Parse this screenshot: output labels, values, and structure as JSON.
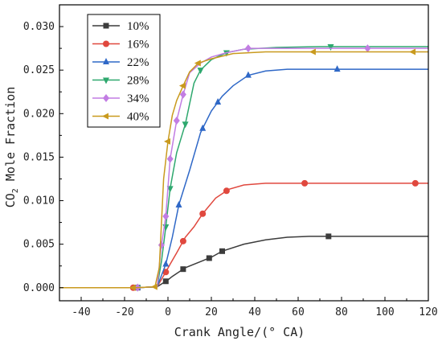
{
  "chart_data": {
    "type": "line",
    "title": "",
    "xlabel": "Crank Angle/(° CA)",
    "ylabel": "CO2 Mole Fraction",
    "ylabel_parts": {
      "pre": "CO",
      "sub": "2",
      "post": " Mole Fraction"
    },
    "xlim": [
      -50,
      120
    ],
    "ylim": [
      -0.0015,
      0.0325
    ],
    "xticks": [
      -40,
      -20,
      0,
      20,
      40,
      60,
      80,
      100,
      120
    ],
    "yticks": [
      0.0,
      0.005,
      0.01,
      0.015,
      0.02,
      0.025,
      0.03
    ],
    "ytick_labels": [
      "0.000",
      "0.005",
      "0.010",
      "0.015",
      "0.020",
      "0.025",
      "0.030"
    ],
    "grid": false,
    "legend_position": "top-left",
    "series": [
      {
        "name": "10%",
        "color": "#3c3c3c",
        "marker": "square",
        "x": [
          -50,
          -15,
          -5,
          0,
          2,
          8,
          15,
          20,
          25,
          35,
          45,
          55,
          65,
          75,
          90,
          105,
          120
        ],
        "y": [
          0,
          0,
          0.0001,
          0.0009,
          0.0013,
          0.0023,
          0.003,
          0.0035,
          0.0042,
          0.005,
          0.0055,
          0.0058,
          0.0059,
          0.0059,
          0.0059,
          0.0059,
          0.0059
        ],
        "marker_x": [
          -14,
          -1,
          7,
          19,
          25,
          74
        ]
      },
      {
        "name": "16%",
        "color": "#e0483e",
        "marker": "circle",
        "x": [
          -50,
          -15,
          -5,
          -1,
          1,
          4,
          8,
          12,
          16,
          22,
          28,
          35,
          45,
          55,
          70,
          90,
          120
        ],
        "y": [
          0,
          0,
          0.0001,
          0.0018,
          0.0027,
          0.004,
          0.0058,
          0.007,
          0.0085,
          0.0103,
          0.0113,
          0.0118,
          0.012,
          0.012,
          0.012,
          0.012,
          0.012
        ],
        "marker_x": [
          -16,
          -1,
          7,
          16,
          27,
          63,
          114
        ]
      },
      {
        "name": "22%",
        "color": "#2f68c7",
        "marker": "triangle-up",
        "x": [
          -50,
          -15,
          -5,
          -1,
          2,
          5,
          10,
          15,
          20,
          25,
          30,
          37,
          45,
          55,
          70,
          90,
          120
        ],
        "y": [
          0,
          0,
          0.0001,
          0.0027,
          0.0058,
          0.0095,
          0.0135,
          0.0178,
          0.0203,
          0.022,
          0.0232,
          0.0244,
          0.0249,
          0.0251,
          0.0251,
          0.0251,
          0.0251
        ],
        "marker_x": [
          -14,
          -1,
          5,
          16,
          23,
          37,
          78
        ]
      },
      {
        "name": "28%",
        "color": "#2ea86e",
        "marker": "triangle-down",
        "x": [
          -50,
          -15,
          -5,
          -3,
          -1,
          1,
          4,
          8,
          12,
          15,
          20,
          27,
          35,
          50,
          70,
          90,
          120
        ],
        "y": [
          0,
          0,
          0.0001,
          0.003,
          0.007,
          0.0114,
          0.0155,
          0.0188,
          0.0235,
          0.025,
          0.0262,
          0.027,
          0.0274,
          0.0276,
          0.0277,
          0.0277,
          0.0277
        ],
        "marker_x": [
          -14,
          -1,
          1,
          8,
          15,
          27,
          75
        ]
      },
      {
        "name": "34%",
        "color": "#c27de3",
        "marker": "diamond",
        "x": [
          -50,
          -15,
          -5,
          -3,
          -1,
          1,
          4,
          7,
          10,
          15,
          20,
          27,
          37,
          50,
          70,
          90,
          120
        ],
        "y": [
          0,
          0,
          0.0001,
          0.0049,
          0.0082,
          0.0148,
          0.0192,
          0.0222,
          0.0247,
          0.0258,
          0.0265,
          0.027,
          0.0275,
          0.0275,
          0.0275,
          0.0275,
          0.0275
        ],
        "marker_x": [
          -14,
          -3,
          -1,
          1,
          4,
          7,
          37,
          92
        ]
      },
      {
        "name": "40%",
        "color": "#c99a1e",
        "marker": "triangle-left",
        "x": [
          -50,
          -15,
          -6,
          -4,
          -2,
          0,
          2,
          4,
          7,
          10,
          14,
          20,
          30,
          45,
          70,
          90,
          120
        ],
        "y": [
          0,
          0,
          0.0001,
          0.0023,
          0.0125,
          0.0168,
          0.0198,
          0.0215,
          0.0232,
          0.0248,
          0.0258,
          0.0263,
          0.0269,
          0.0271,
          0.0271,
          0.0271,
          0.0271
        ],
        "marker_x": [
          -16,
          -6,
          0,
          7,
          14,
          67,
          113
        ]
      }
    ]
  }
}
